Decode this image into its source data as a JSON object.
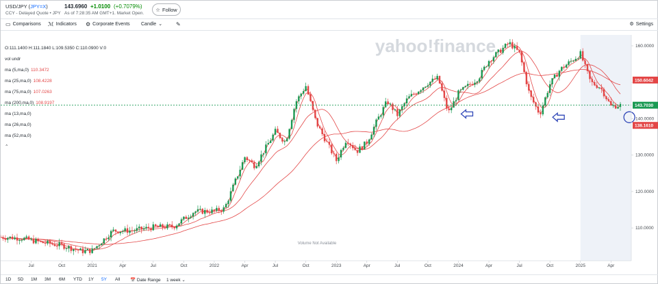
{
  "header": {
    "pair": "USD/JPY",
    "symbol": "JPY=X",
    "source": "CCY - Delayed Quote • JPY",
    "price": "143.6960",
    "change": "+1.0100",
    "change_pct": "(+0.7079%)",
    "as_of": "As of 7:28:35 AM GMT+1. Market Open.",
    "follow_label": "Follow"
  },
  "toolbar": {
    "comparisons": "Comparisons",
    "indicators": "Indicators",
    "corporate_events": "Corporate Events",
    "chart_type": "Candle",
    "settings": "Settings"
  },
  "legend": {
    "ohlc": "O:111.1400  H:111.1840  L:109.5350  C:110.0900  V:0",
    "vol": "vol undr",
    "ma": [
      {
        "label": "ma (5,ma,0)",
        "value": "110.3472"
      },
      {
        "label": "ma (25,ma,0)",
        "value": "108.4228"
      },
      {
        "label": "ma (75,ma,0)",
        "value": "107.0263"
      },
      {
        "label": "ma (200,ma,0)",
        "value": "108.9197"
      },
      {
        "label": "ma (13,ma,0)"
      },
      {
        "label": "ma (26,ma,0)"
      },
      {
        "label": "ma (52,ma,0)"
      }
    ]
  },
  "watermark": "yahoo!finance",
  "volume_note": "Volume Not Available",
  "ranges": [
    "1D",
    "5D",
    "1M",
    "3M",
    "6M",
    "YTD",
    "1Y",
    "5Y",
    "All"
  ],
  "bottom": {
    "date_range": "Date Range",
    "interval": "1 week"
  },
  "colors": {
    "up": "#1a9a53",
    "down": "#e34646",
    "ma": "#e34646",
    "arrow": "#3148b8",
    "price_tag_current": "#1a9a53",
    "price_tag_ma": "#e34646",
    "shade": "#eef2f8"
  },
  "price_tags": [
    {
      "label": "150.6042",
      "value": 150.6042,
      "color": "#e34646"
    },
    {
      "label": "143.7030",
      "value": 143.703,
      "color": "#1a9a53"
    },
    {
      "label": "138.1610",
      "value": 138.161,
      "color": "#e34646"
    }
  ],
  "chart_data": {
    "type": "candlestick",
    "interval": "1 week",
    "ylim": [
      101,
      163
    ],
    "y_ticks": [
      110,
      120,
      130,
      140,
      150,
      160
    ],
    "y_tick_labels": [
      "110.0000",
      "120.0000",
      "130.0000",
      "140.0000",
      "150.0000",
      "160.0000"
    ],
    "x_tick_labels": [
      {
        "label": "Jul",
        "t": "2020-07"
      },
      {
        "label": "Oct",
        "t": "2020-10"
      },
      {
        "label": "2021",
        "t": "2021-01"
      },
      {
        "label": "Apr",
        "t": "2021-04"
      },
      {
        "label": "Jul",
        "t": "2021-07"
      },
      {
        "label": "Oct",
        "t": "2021-10"
      },
      {
        "label": "2022",
        "t": "2022-01"
      },
      {
        "label": "Apr",
        "t": "2022-04"
      },
      {
        "label": "Jul",
        "t": "2022-07"
      },
      {
        "label": "Oct",
        "t": "2022-10"
      },
      {
        "label": "2023",
        "t": "2023-01"
      },
      {
        "label": "Apr",
        "t": "2023-04"
      },
      {
        "label": "Jul",
        "t": "2023-07"
      },
      {
        "label": "Oct",
        "t": "2023-10"
      },
      {
        "label": "2024",
        "t": "2024-01"
      },
      {
        "label": "Apr",
        "t": "2024-04"
      },
      {
        "label": "Jul",
        "t": "2024-07"
      },
      {
        "label": "Oct",
        "t": "2024-10"
      },
      {
        "label": "2025",
        "t": "2025-01"
      },
      {
        "label": "Apr",
        "t": "2025-04"
      }
    ],
    "x_range": [
      "2020-04",
      "2025-05"
    ],
    "shaded_from": "2025-01",
    "current_price": 143.703,
    "close_path": [
      [
        "2020-04",
        107.5
      ],
      [
        "2020-06",
        107.2
      ],
      [
        "2020-08",
        106.0
      ],
      [
        "2020-10",
        105.2
      ],
      [
        "2020-12",
        103.6
      ],
      [
        "2021-01",
        103.8
      ],
      [
        "2021-03",
        109.2
      ],
      [
        "2021-05",
        109.3
      ],
      [
        "2021-07",
        110.2
      ],
      [
        "2021-09",
        110.4
      ],
      [
        "2021-11",
        114.5
      ],
      [
        "2022-01",
        114.6
      ],
      [
        "2022-02",
        115.3
      ],
      [
        "2022-04",
        129.5
      ],
      [
        "2022-05",
        127.0
      ],
      [
        "2022-07",
        136.5
      ],
      [
        "2022-08",
        133.5
      ],
      [
        "2022-09",
        144.5
      ],
      [
        "2022-10",
        149.0
      ],
      [
        "2022-11",
        139.0
      ],
      [
        "2023-01",
        128.5
      ],
      [
        "2023-02",
        134.5
      ],
      [
        "2023-03",
        131.0
      ],
      [
        "2023-04",
        133.5
      ],
      [
        "2023-05",
        139.5
      ],
      [
        "2023-06",
        144.8
      ],
      [
        "2023-07",
        141.0
      ],
      [
        "2023-08",
        145.5
      ],
      [
        "2023-10",
        149.8
      ],
      [
        "2023-11",
        151.2
      ],
      [
        "2023-12",
        141.5
      ],
      [
        "2024-01",
        147.0
      ],
      [
        "2024-03",
        151.3
      ],
      [
        "2024-04",
        156.0
      ],
      [
        "2024-06",
        160.8
      ],
      [
        "2024-07",
        158.0
      ],
      [
        "2024-08",
        146.5
      ],
      [
        "2024-09",
        141.2
      ],
      [
        "2024-10",
        149.5
      ],
      [
        "2024-11",
        153.5
      ],
      [
        "2025-01",
        157.8
      ],
      [
        "2025-02",
        150.0
      ],
      [
        "2025-03",
        148.5
      ],
      [
        "2025-04",
        143.4
      ],
      [
        "2025-05",
        143.7
      ]
    ],
    "series": [
      {
        "name": "ma (5,ma,0)",
        "window": 5
      },
      {
        "name": "ma (25,ma,0)",
        "window": 25
      },
      {
        "name": "ma (75,ma,0)",
        "window": 75
      },
      {
        "name": "ma (200,ma,0)",
        "window": 200
      }
    ],
    "annotations": [
      {
        "type": "arrow-left",
        "t": "2024-01",
        "price": 141.3,
        "color": "#3148b8"
      },
      {
        "type": "arrow-left",
        "t": "2024-10",
        "price": 140.4,
        "color": "#3148b8"
      },
      {
        "type": "circle",
        "t": "2025-05",
        "price": 140.4,
        "color": "#3148b8"
      }
    ]
  }
}
